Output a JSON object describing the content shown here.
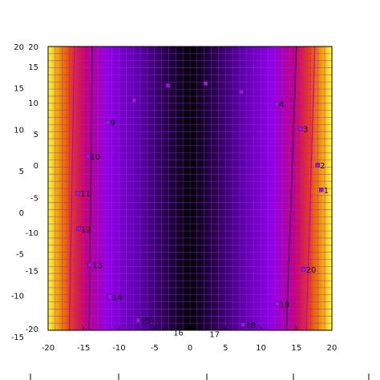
{
  "chart_data": {
    "type": "heatmap",
    "title": "",
    "xlabel": "",
    "ylabel": "",
    "xlim": [
      -20,
      20
    ],
    "ylim": [
      -20,
      20
    ],
    "x_ticks": [
      -20,
      -15,
      -10,
      -5,
      0,
      5,
      10,
      15,
      20
    ],
    "x_tick_labels": [
      "-20",
      "-15",
      "-10",
      "-5",
      "0",
      "5",
      "10",
      "15",
      "20"
    ],
    "left_outer_ticks": [
      {
        "label": "20",
        "y": 20
      },
      {
        "label": "15",
        "y": 15
      },
      {
        "label": "10",
        "y": 10
      },
      {
        "label": "5",
        "y": 5
      },
      {
        "label": "0",
        "y": 0
      },
      {
        "label": "-5",
        "y": -5
      },
      {
        "label": "-10",
        "y": -10
      },
      {
        "label": "-15",
        "y": -15
      }
    ],
    "left_inner_ticks": [
      {
        "label": "20",
        "y": 20
      },
      {
        "label": "15",
        "y": 17.2
      },
      {
        "label": "10",
        "y": 12.1
      },
      {
        "label": "5",
        "y": 7.7
      },
      {
        "label": "0",
        "y": 3.3
      },
      {
        "label": "-5",
        "y": -1.3
      },
      {
        "label": "-10",
        "y": -6.2
      },
      {
        "label": "-15",
        "y": -11.6
      },
      {
        "label": "-20",
        "y": -19.8
      }
    ],
    "color_scale": [
      "#000000",
      "#2a0050",
      "#5a00a8",
      "#9000e8",
      "#c8007a",
      "#e83c14",
      "#f0a000",
      "#ffff40"
    ],
    "surface": "value increases with |x|, slightly widening toward the bottom",
    "contour_lines": [
      {
        "level": "low",
        "x_top": -13.8,
        "x_bottom": -14.2,
        "color": "#2a0060"
      },
      {
        "level": "low",
        "x_top": 15.0,
        "x_bottom": 13.6,
        "color": "#2a0060"
      },
      {
        "level": "mid",
        "x_top": -16.3,
        "x_bottom": -17.0,
        "color": "#c000c0"
      },
      {
        "level": "mid",
        "x_top": 17.6,
        "x_bottom": 16.4,
        "color": "#c000c0"
      }
    ],
    "points": [
      {
        "label": "1",
        "x": 18.5,
        "y": -0.2,
        "show": true
      },
      {
        "label": "2",
        "x": 18.0,
        "y": 3.3,
        "show": true
      },
      {
        "label": "3",
        "x": 15.6,
        "y": 8.4,
        "show": true
      },
      {
        "label": "4",
        "x": 12.2,
        "y": 11.9,
        "show": true
      },
      {
        "label": "",
        "x": 7.2,
        "y": 13.6,
        "show": false
      },
      {
        "label": "",
        "x": 2.2,
        "y": 14.8,
        "show": false
      },
      {
        "label": "",
        "x": -3.1,
        "y": 14.5,
        "show": false
      },
      {
        "label": "",
        "x": -7.9,
        "y": 12.4,
        "show": false
      },
      {
        "label": "9",
        "x": -11.6,
        "y": 9.3,
        "show": true
      },
      {
        "label": "10",
        "x": -14.4,
        "y": 4.5,
        "show": true
      },
      {
        "label": "11",
        "x": -15.8,
        "y": -0.7,
        "show": true
      },
      {
        "label": "12",
        "x": -15.7,
        "y": -5.7,
        "show": true
      },
      {
        "label": "13",
        "x": -14.1,
        "y": -10.8,
        "show": true
      },
      {
        "label": "14",
        "x": -11.3,
        "y": -15.3,
        "show": true
      },
      {
        "label": "15",
        "x": -7.3,
        "y": -18.6,
        "show": true
      },
      {
        "label": "16",
        "x": -2.7,
        "y": -20.3,
        "show": true
      },
      {
        "label": "17",
        "x": 2.4,
        "y": -20.5,
        "show": true
      },
      {
        "label": "18",
        "x": 7.5,
        "y": -19.2,
        "show": true
      },
      {
        "label": "19",
        "x": 12.3,
        "y": -16.3,
        "show": true
      },
      {
        "label": "20",
        "x": 16.0,
        "y": -11.4,
        "show": true
      }
    ]
  }
}
